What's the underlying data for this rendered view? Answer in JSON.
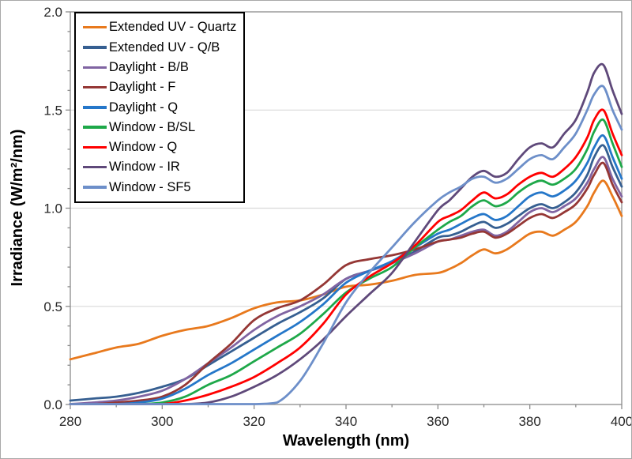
{
  "chart_data": {
    "type": "line",
    "title": "",
    "xlabel": "Wavelength (nm)",
    "ylabel": "Irradiance (W/m²/nm)",
    "xlim": [
      280,
      400
    ],
    "ylim": [
      0,
      2.0
    ],
    "x_major_step": 20,
    "x_minor_step": 10,
    "y_major_step": 0.5,
    "y_minor_step": 0.1,
    "grid": "horizontal-major",
    "x_tick_labels": [
      "280",
      "300",
      "320",
      "340",
      "360",
      "380",
      "400"
    ],
    "y_tick_labels": [
      "0.0",
      "0.5",
      "1.0",
      "1.5",
      "2.0"
    ],
    "legend_position": "top-left-inside",
    "colors": {
      "axis": "#8c8c8c",
      "grid": "#d9d9d9",
      "tick_label": "#262626",
      "legend_border": "#000000",
      "plot_background": "#ffffff"
    },
    "x": [
      280,
      285,
      290,
      295,
      300,
      305,
      310,
      315,
      320,
      325,
      330,
      335,
      340,
      345,
      350,
      355,
      360,
      362.5,
      365,
      367.5,
      370,
      372.5,
      375,
      377.5,
      380,
      382.5,
      385,
      387.5,
      390,
      392.5,
      394,
      396,
      398,
      400
    ],
    "series": [
      {
        "name": "Extended UV - Quartz",
        "color": "#e8791d",
        "values": [
          0.23,
          0.26,
          0.29,
          0.31,
          0.35,
          0.38,
          0.4,
          0.44,
          0.49,
          0.52,
          0.53,
          0.56,
          0.6,
          0.61,
          0.63,
          0.66,
          0.67,
          0.69,
          0.72,
          0.76,
          0.79,
          0.77,
          0.79,
          0.83,
          0.87,
          0.88,
          0.86,
          0.89,
          0.93,
          1.01,
          1.08,
          1.14,
          1.06,
          0.96
        ]
      },
      {
        "name": "Extended UV - Q/B",
        "color": "#365f91",
        "values": [
          0.02,
          0.03,
          0.04,
          0.06,
          0.09,
          0.13,
          0.2,
          0.27,
          0.34,
          0.41,
          0.47,
          0.54,
          0.64,
          0.68,
          0.72,
          0.78,
          0.85,
          0.86,
          0.88,
          0.91,
          0.93,
          0.9,
          0.92,
          0.96,
          1.0,
          1.02,
          1.0,
          1.03,
          1.08,
          1.17,
          1.26,
          1.32,
          1.21,
          1.11
        ]
      },
      {
        "name": "Daylight - B/B",
        "color": "#8064a2",
        "values": [
          0.0,
          0.01,
          0.02,
          0.04,
          0.07,
          0.13,
          0.21,
          0.29,
          0.38,
          0.45,
          0.5,
          0.56,
          0.64,
          0.68,
          0.72,
          0.77,
          0.83,
          0.84,
          0.86,
          0.88,
          0.89,
          0.86,
          0.88,
          0.93,
          0.98,
          1.0,
          0.98,
          1.01,
          1.05,
          1.13,
          1.2,
          1.26,
          1.15,
          1.06
        ]
      },
      {
        "name": "Daylight - F",
        "color": "#953735",
        "values": [
          0.0,
          0.0,
          0.01,
          0.02,
          0.04,
          0.1,
          0.21,
          0.31,
          0.43,
          0.49,
          0.53,
          0.61,
          0.71,
          0.74,
          0.76,
          0.79,
          0.83,
          0.84,
          0.85,
          0.87,
          0.88,
          0.85,
          0.87,
          0.91,
          0.95,
          0.97,
          0.95,
          0.98,
          1.02,
          1.1,
          1.17,
          1.23,
          1.12,
          1.03
        ]
      },
      {
        "name": "Daylight - Q",
        "color": "#2577c9",
        "values": [
          0.0,
          0.0,
          0.0,
          0.01,
          0.03,
          0.08,
          0.15,
          0.21,
          0.28,
          0.35,
          0.42,
          0.51,
          0.62,
          0.68,
          0.73,
          0.8,
          0.87,
          0.89,
          0.92,
          0.95,
          0.97,
          0.94,
          0.96,
          1.01,
          1.06,
          1.08,
          1.06,
          1.09,
          1.14,
          1.23,
          1.31,
          1.37,
          1.26,
          1.15
        ]
      },
      {
        "name": "Window - B/SL",
        "color": "#1ea849",
        "values": [
          0.0,
          0.0,
          0.0,
          0.0,
          0.01,
          0.04,
          0.1,
          0.15,
          0.22,
          0.29,
          0.36,
          0.46,
          0.57,
          0.64,
          0.7,
          0.8,
          0.89,
          0.93,
          0.96,
          1.01,
          1.04,
          1.01,
          1.03,
          1.08,
          1.12,
          1.14,
          1.12,
          1.15,
          1.2,
          1.3,
          1.39,
          1.45,
          1.33,
          1.21
        ]
      },
      {
        "name": "Window - Q",
        "color": "#ff0000",
        "values": [
          0.0,
          0.0,
          0.0,
          0.0,
          0.0,
          0.02,
          0.05,
          0.09,
          0.14,
          0.21,
          0.29,
          0.41,
          0.56,
          0.65,
          0.72,
          0.81,
          0.93,
          0.96,
          0.99,
          1.04,
          1.08,
          1.05,
          1.07,
          1.12,
          1.16,
          1.18,
          1.16,
          1.2,
          1.26,
          1.36,
          1.45,
          1.5,
          1.38,
          1.27
        ]
      },
      {
        "name": "Window - IR",
        "color": "#5f497a",
        "values": [
          0.0,
          0.0,
          0.0,
          0.0,
          0.0,
          0.0,
          0.01,
          0.04,
          0.09,
          0.15,
          0.23,
          0.33,
          0.45,
          0.56,
          0.67,
          0.83,
          0.99,
          1.04,
          1.1,
          1.16,
          1.19,
          1.16,
          1.18,
          1.25,
          1.31,
          1.33,
          1.31,
          1.38,
          1.45,
          1.59,
          1.69,
          1.73,
          1.6,
          1.48
        ]
      },
      {
        "name": "Window - SF5",
        "color": "#6d8fc9",
        "values": [
          0.0,
          0.0,
          0.0,
          0.0,
          0.0,
          0.0,
          0.0,
          0.0,
          0.0,
          0.01,
          0.12,
          0.31,
          0.52,
          0.67,
          0.8,
          0.93,
          1.04,
          1.08,
          1.11,
          1.15,
          1.16,
          1.13,
          1.15,
          1.2,
          1.25,
          1.27,
          1.25,
          1.31,
          1.38,
          1.5,
          1.58,
          1.62,
          1.5,
          1.4
        ]
      }
    ]
  }
}
